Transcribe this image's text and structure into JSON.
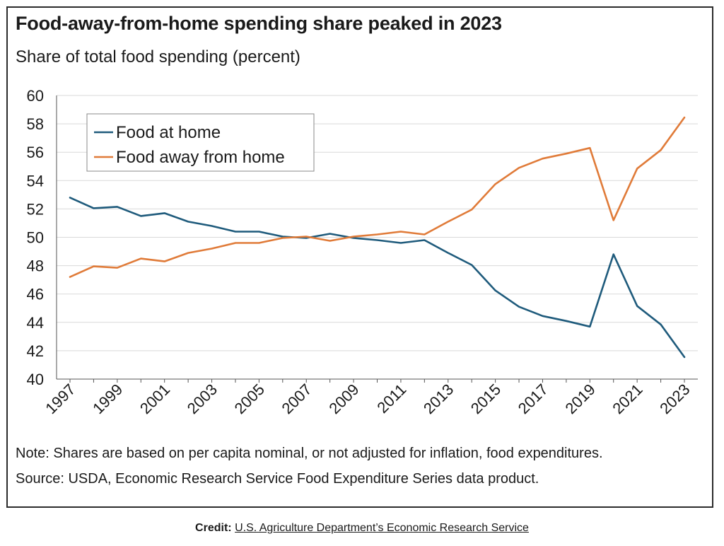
{
  "title": "Food-away-from-home spending share peaked in 2023",
  "subtitle": "Share of total food spending (percent)",
  "note": "Note: Shares are based on per capita nominal, or not adjusted for inflation, food expenditures.",
  "source": "Source: USDA, Economic Research Service Food Expenditure Series data product.",
  "credit": {
    "label": "Credit:",
    "link_text": "U.S. Agriculture Department’s Economic Research Service"
  },
  "colors": {
    "food_at_home": "#1f5b7c",
    "food_away": "#e07b39",
    "grid": "#d9d9d9",
    "axis": "#555555"
  },
  "chart_data": {
    "type": "line",
    "title": "Food-away-from-home spending share peaked in 2023",
    "ylabel": "Share of total food spending (percent)",
    "xlabel": "",
    "ylim": [
      40,
      60
    ],
    "yticks": [
      40,
      42,
      44,
      46,
      48,
      50,
      52,
      54,
      56,
      58,
      60
    ],
    "grid": true,
    "legend": "top-left",
    "x": [
      1997,
      1998,
      1999,
      2000,
      2001,
      2002,
      2003,
      2004,
      2005,
      2006,
      2007,
      2008,
      2009,
      2010,
      2011,
      2012,
      2013,
      2014,
      2015,
      2016,
      2017,
      2018,
      2019,
      2020,
      2021,
      2022,
      2023
    ],
    "xtick_labels": [
      "1997",
      "1999",
      "2001",
      "2003",
      "2005",
      "2007",
      "2009",
      "2011",
      "2013",
      "2015",
      "2017",
      "2019",
      "2021",
      "2023"
    ],
    "series": [
      {
        "name": "Food at home",
        "color": "#1f5b7c",
        "values": [
          52.8,
          52.05,
          52.15,
          51.5,
          51.7,
          51.1,
          50.8,
          50.4,
          50.4,
          50.05,
          49.95,
          50.25,
          49.95,
          49.8,
          49.6,
          49.8,
          48.9,
          48.05,
          46.25,
          45.1,
          44.45,
          44.1,
          43.7,
          48.8,
          45.15,
          43.85,
          41.55
        ]
      },
      {
        "name": "Food away from home",
        "color": "#e07b39",
        "values": [
          47.2,
          47.95,
          47.85,
          48.5,
          48.3,
          48.9,
          49.2,
          49.6,
          49.6,
          49.95,
          50.05,
          49.75,
          50.05,
          50.2,
          50.4,
          50.2,
          51.1,
          51.95,
          53.75,
          54.9,
          55.55,
          55.9,
          56.3,
          51.2,
          54.85,
          56.15,
          58.45
        ]
      }
    ]
  }
}
